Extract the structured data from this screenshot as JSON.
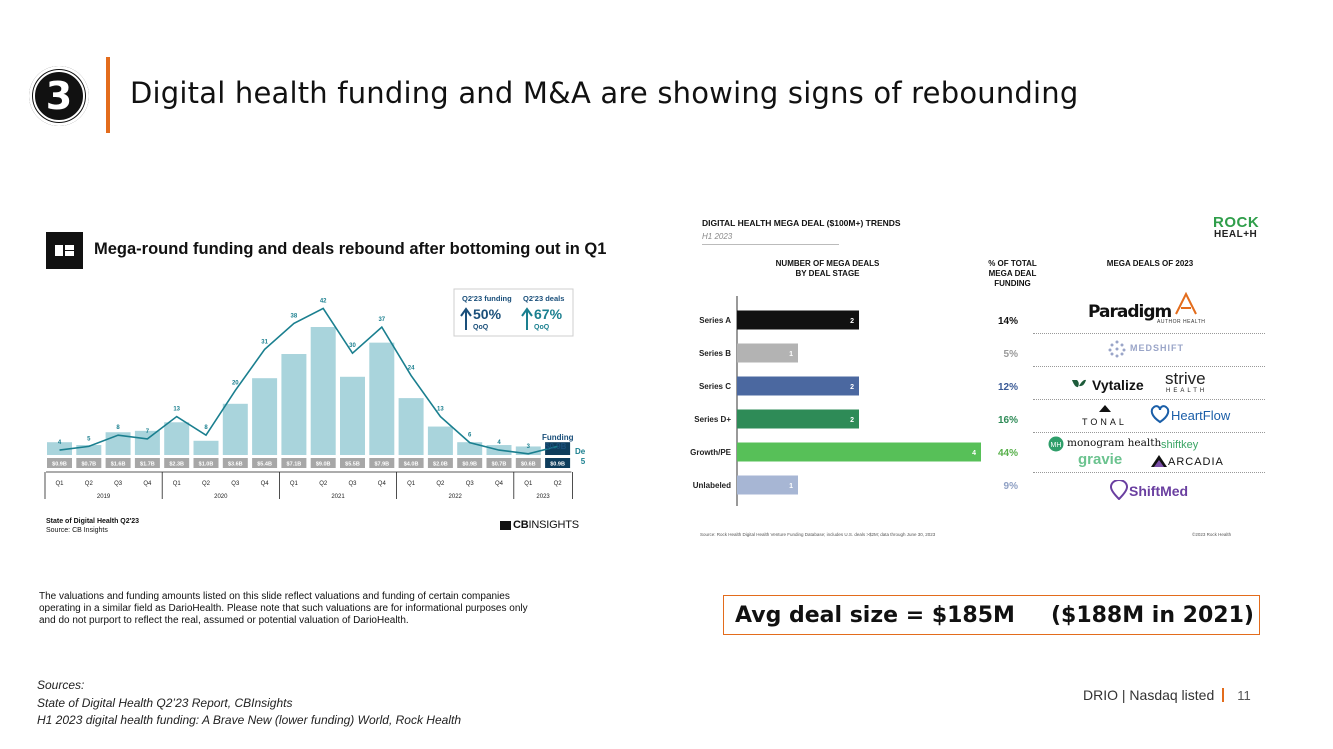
{
  "header": {
    "badge_number": "3",
    "title": "Digital health funding and M&A are showing signs of rebounding"
  },
  "left_chart": {
    "title": "Mega-round funding and deals rebound after bottoming out in Q1",
    "source_line1": "State of Digital Health Q2'23",
    "source_line2": "Source: CB Insights",
    "logo_bold": "CB",
    "logo_light": "INSIGHTS",
    "callout": {
      "funding_label": "Q2'23 funding",
      "funding_value": "50%",
      "funding_qoq": "QoQ",
      "deals_label": "Q2'23 deals",
      "deals_value": "67%",
      "deals_qoq": "QoQ"
    },
    "end_funding_label": "Funding",
    "end_funding_value": "$0.9B",
    "end_deals_label": "Deals",
    "end_deals_value": "5"
  },
  "chart_data": [
    {
      "type": "bar",
      "title": "Mega-round funding and deals rebound after bottoming out in Q1",
      "categories": [
        "Q1",
        "Q2",
        "Q3",
        "Q4",
        "Q1",
        "Q2",
        "Q3",
        "Q4",
        "Q1",
        "Q2",
        "Q3",
        "Q4",
        "Q1",
        "Q2",
        "Q3",
        "Q4",
        "Q1",
        "Q2"
      ],
      "years": [
        {
          "label": "2019",
          "span": 4
        },
        {
          "label": "2020",
          "span": 4
        },
        {
          "label": "2021",
          "span": 4
        },
        {
          "label": "2022",
          "span": 4
        },
        {
          "label": "2023",
          "span": 2
        }
      ],
      "series": [
        {
          "name": "Funding",
          "values": [
            0.9,
            0.7,
            1.6,
            1.7,
            2.3,
            1.0,
            3.6,
            5.4,
            7.1,
            9.0,
            5.5,
            7.9,
            4.0,
            2.0,
            0.9,
            0.7,
            0.6,
            0.9
          ],
          "labels": [
            "$0.9B",
            "$0.7B",
            "$1.6B",
            "$1.7B",
            "$2.3B",
            "$1.0B",
            "$3.6B",
            "$5.4B",
            "$7.1B",
            "$9.0B",
            "$5.5B",
            "$7.9B",
            "$4.0B",
            "$2.0B",
            "$0.9B",
            "$0.7B",
            "$0.6B",
            "$0.9B"
          ]
        },
        {
          "name": "Deals",
          "type": "line",
          "values": [
            4,
            5,
            8,
            7,
            13,
            8,
            20,
            31,
            38,
            42,
            30,
            37,
            24,
            13,
            6,
            4,
            3,
            5
          ]
        }
      ],
      "colors": {
        "bar": "#a9d4dc",
        "bar_last": "#0e3d5c",
        "line": "#1a7f8f",
        "label_bg": "#a7a7a7"
      }
    },
    {
      "type": "bar",
      "title": "DIGITAL HEALTH MEGA DEAL ($100M+) TRENDS",
      "orientation": "horizontal",
      "categories": [
        "Series A",
        "Series B",
        "Series C",
        "Series D+",
        "Growth/PE",
        "Unlabeled"
      ],
      "values": [
        2,
        1,
        2,
        2,
        4,
        1
      ],
      "pct_of_total": [
        "14%",
        "5%",
        "12%",
        "16%",
        "44%",
        "9%"
      ],
      "colors": [
        "#111111",
        "#b3b3b3",
        "#4b68a0",
        "#2e8b57",
        "#57c058",
        "#a7b6d4"
      ],
      "pct_colors": [
        "#111111",
        "#999999",
        "#3a5a96",
        "#2e8b57",
        "#57b04a",
        "#8fa0c4"
      ]
    }
  ],
  "right_panel": {
    "title": "DIGITAL HEALTH MEGA DEAL ($100M+) TRENDS",
    "subtitle": "H1 2023",
    "logo_top": "ROCK",
    "logo_bottom": "HEAL+H",
    "head_deals_1": "NUMBER OF MEGA DEALS",
    "head_deals_2": "BY DEAL STAGE",
    "head_pct_1": "% OF TOTAL",
    "head_pct_2": "MEGA DEAL",
    "head_pct_3": "FUNDING",
    "head_mega": "MEGA DEALS OF 2023",
    "footnote": "Source: Rock Health Digital Health Venture Funding Database; includes U.S. deals >$2M; data through June 30, 2023",
    "copyright": "©2023 Rock Health",
    "companies": {
      "paradigm": "Paradigm",
      "author": "AUTHOR HEALTH",
      "medshift": "MEDSHIFT",
      "vytalize": "Vytalize",
      "strive_1": "strive",
      "strive_2": "HEALTH",
      "tonal": "TONAL",
      "heartflow": "HeartFlow",
      "monogram": "monogram health",
      "shiftkey": "shiftkey",
      "gravie": "gravie",
      "arcadia": "ARCADIA",
      "shiftmed": "ShiftMed"
    }
  },
  "disclaimer": "The valuations and funding amounts listed on this slide reflect valuations and funding of certain companies operating in a similar field as DarioHealth. Please note that such valuations are for informational purposes only and do not purport to reflect the real, assumed or potential valuation of DarioHealth.",
  "avg_deal": {
    "left": "Avg deal size = $185M",
    "right": "($188M in 2021)"
  },
  "sources": {
    "heading": "Sources:",
    "line1": "State of Digital Health Q2’23 Report, CBInsights",
    "line2": "H1 2023 digital health funding: A Brave New (lower funding) World, Rock Health"
  },
  "footer": {
    "text": "DRIO | Nasdaq listed",
    "page": "11"
  }
}
